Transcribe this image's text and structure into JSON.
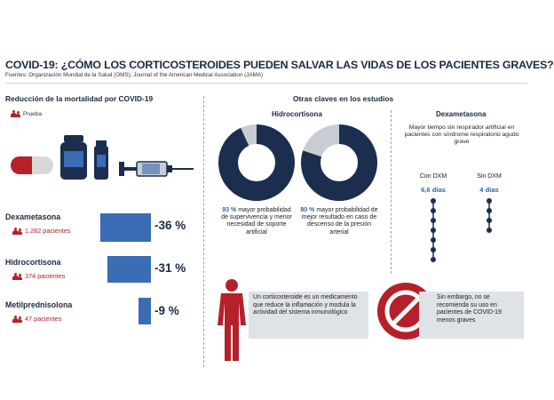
{
  "title": "COVID-19: ¿CÓMO LOS CORTICOSTEROIDES PUEDEN SALVAR LAS VIDAS DE LOS PACIENTES GRAVES?",
  "sources": "Fuentes: Organización Mundial de la Salud (OMS); Journal of the American Medical Association (JAMA)",
  "left": {
    "heading": "Reducción de la mortalidad por COVID-19",
    "legend_label": "Prueba",
    "drugs": [
      {
        "name": "Dexametasona",
        "patients": "1.282 pacientes",
        "reduction_pct": 36,
        "reduction_label": "-36 %"
      },
      {
        "name": "Hidrocortisona",
        "patients": "374 pacientes",
        "reduction_pct": 31,
        "reduction_label": "-31 %"
      },
      {
        "name": "Metilprednisolona",
        "patients": "47 pacientes",
        "reduction_pct": 9,
        "reduction_label": "-9 %"
      }
    ]
  },
  "right": {
    "heading": "Otras claves en los estudios",
    "hydro": {
      "heading": "Hidrocortisona",
      "donuts": [
        {
          "value_pct": 93,
          "pct_label": "93 %",
          "text": "mayor probabilidad de supervivencia y menor necesidad de soporte artificial"
        },
        {
          "value_pct": 80,
          "pct_label": "80 %",
          "text": "mayor probabilidad de mejor resultado en caso de descenso de la presión arterial"
        }
      ]
    },
    "dexa": {
      "heading": "Dexametasona",
      "description": "Mayor tiempo sin respirador artificial en pacientes con síndrome respiratorio agudo grave",
      "with_label": "Con DXM",
      "with_days_label": "6,6 días",
      "with_days": 6.6,
      "without_label": "Sin DXM",
      "without_days_label": "4 días",
      "without_days": 4
    },
    "info_left": "Un corticosteroide es un medicamento que reduce la inflamación y modula la actividad del sistema inmunológico",
    "info_right": "Sin embargo, no se recomienda su uso en pacientes de COVID-19 menos graves"
  },
  "colors": {
    "navy": "#1b2e4f",
    "blue": "#3a6db3",
    "red": "#b5202a",
    "gray": "#c8cdd3"
  },
  "icons": [
    "person-icon",
    "pill-icon",
    "medicine-bottle-icon",
    "vial-icon",
    "syringe-icon",
    "body-icon",
    "prohibited-icon"
  ]
}
